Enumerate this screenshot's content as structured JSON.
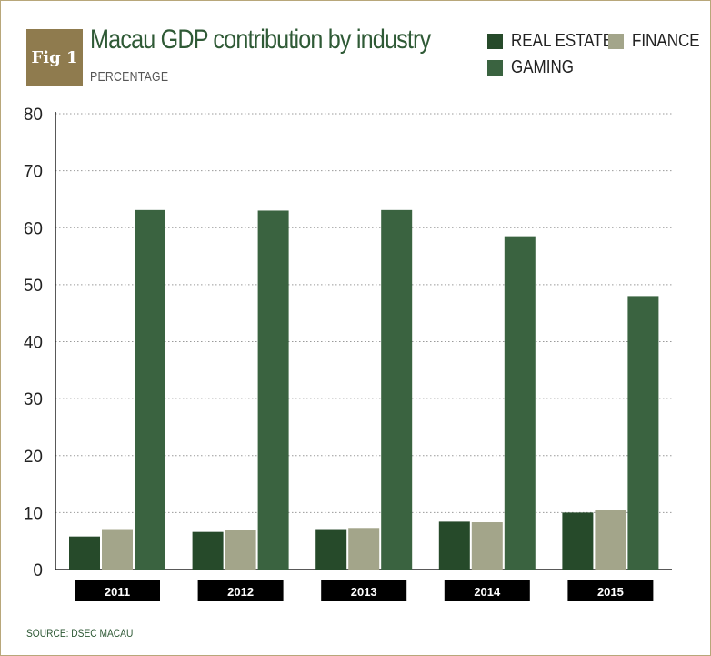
{
  "figure": {
    "badge": "Fig 1",
    "title": "Macau GDP contribution by industry",
    "subtitle": "PERCENTAGE",
    "source": "SOURCE: DSEC MACAU"
  },
  "legend": [
    {
      "label": "REAL ESTATE",
      "color": "#264a2a"
    },
    {
      "label": "FINANCE",
      "color": "#a3a58a"
    },
    {
      "label": "GAMING",
      "color": "#3a6340"
    }
  ],
  "chart_data": {
    "type": "bar",
    "title": "Macau GDP contribution by industry",
    "subtitle": "PERCENTAGE",
    "xlabel": "",
    "ylabel": "",
    "ylim": [
      0,
      80
    ],
    "yticks": [
      0,
      10,
      20,
      30,
      40,
      50,
      60,
      70,
      80
    ],
    "grid": true,
    "legend_position": "top-right",
    "categories": [
      "2011",
      "2012",
      "2013",
      "2014",
      "2015"
    ],
    "series": [
      {
        "name": "REAL ESTATE",
        "color": "#264a2a",
        "values": [
          5.8,
          6.6,
          7.1,
          8.4,
          10.0
        ]
      },
      {
        "name": "FINANCE",
        "color": "#a3a58a",
        "values": [
          7.1,
          6.9,
          7.3,
          8.3,
          10.4
        ]
      },
      {
        "name": "GAMING",
        "color": "#3a6340",
        "values": [
          63.1,
          63.0,
          63.1,
          58.5,
          48.0
        ]
      }
    ]
  }
}
